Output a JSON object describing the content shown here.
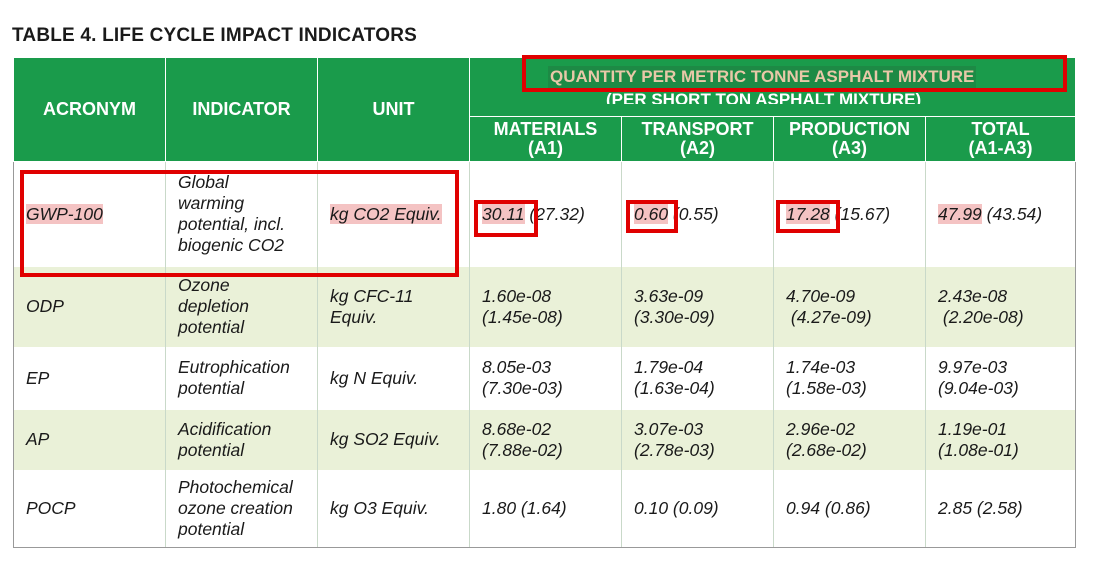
{
  "title": "TABLE 4. LIFE CYCLE IMPACT INDICATORS",
  "header": {
    "acronym": "ACRONYM",
    "indicator": "INDICATOR",
    "unit": "UNIT",
    "quantity_main": "QUANTITY PER METRIC TONNE ASPHALT MIXTURE",
    "quantity_sub": "(PER SHORT TON ASPHALT MIXTURE)",
    "materials": "MATERIALS",
    "materials_code": "(A1)",
    "transport": "TRANSPORT",
    "transport_code": "(A2)",
    "production": "PRODUCTION",
    "production_code": "(A3)",
    "total": "TOTAL",
    "total_code": "(A1-A3)"
  },
  "rows": [
    {
      "acronym": "GWP-100",
      "indicator": [
        "Global",
        "warming",
        "potential, incl.",
        "biogenic CO2"
      ],
      "unit": [
        "kg CO2 Equiv."
      ],
      "materials": [
        "30.11",
        " (27.32)"
      ],
      "transport": [
        "0.60",
        " (0.55)"
      ],
      "production": [
        "17.28",
        " (15.67)"
      ],
      "total": [
        "47.99",
        " (43.54)"
      ]
    },
    {
      "acronym": "ODP",
      "indicator": [
        "Ozone",
        "depletion",
        "potential"
      ],
      "unit": [
        "kg CFC-11",
        "Equiv."
      ],
      "materials": [
        "1.60e-08",
        "(1.45e-08)"
      ],
      "transport": [
        "3.63e-09",
        "(3.30e-09)"
      ],
      "production": [
        "4.70e-09",
        " (4.27e-09)"
      ],
      "total": [
        "2.43e-08",
        " (2.20e-08)"
      ]
    },
    {
      "acronym": "EP",
      "indicator": [
        "Eutrophication",
        "potential"
      ],
      "unit": [
        "kg N Equiv."
      ],
      "materials": [
        "8.05e-03",
        "(7.30e-03)"
      ],
      "transport": [
        "1.79e-04",
        "(1.63e-04)"
      ],
      "production": [
        "1.74e-03",
        "(1.58e-03)"
      ],
      "total": [
        "9.97e-03",
        "(9.04e-03)"
      ]
    },
    {
      "acronym": "AP",
      "indicator": [
        "Acidification",
        "potential"
      ],
      "unit": [
        "kg SO2 Equiv."
      ],
      "materials": [
        "8.68e-02",
        "(7.88e-02)"
      ],
      "transport": [
        "3.07e-03",
        "(2.78e-03)"
      ],
      "production": [
        "2.96e-02",
        "(2.68e-02)"
      ],
      "total": [
        "1.19e-01",
        "(1.08e-01)"
      ]
    },
    {
      "acronym": "POCP",
      "indicator": [
        "Photochemical",
        "ozone creation",
        "potential"
      ],
      "unit": [
        "kg O3 Equiv."
      ],
      "materials": [
        "1.80 (1.64)"
      ],
      "transport": [
        "0.10 (0.09)"
      ],
      "production": [
        "0.94 (0.86)"
      ],
      "total": [
        "2.85 (2.58)"
      ]
    }
  ],
  "colors": {
    "header_green": "#1a9b4b",
    "row_shade": "#eaf1d8",
    "highlight": "#f4c3c3",
    "annotation_red": "#e00000"
  }
}
